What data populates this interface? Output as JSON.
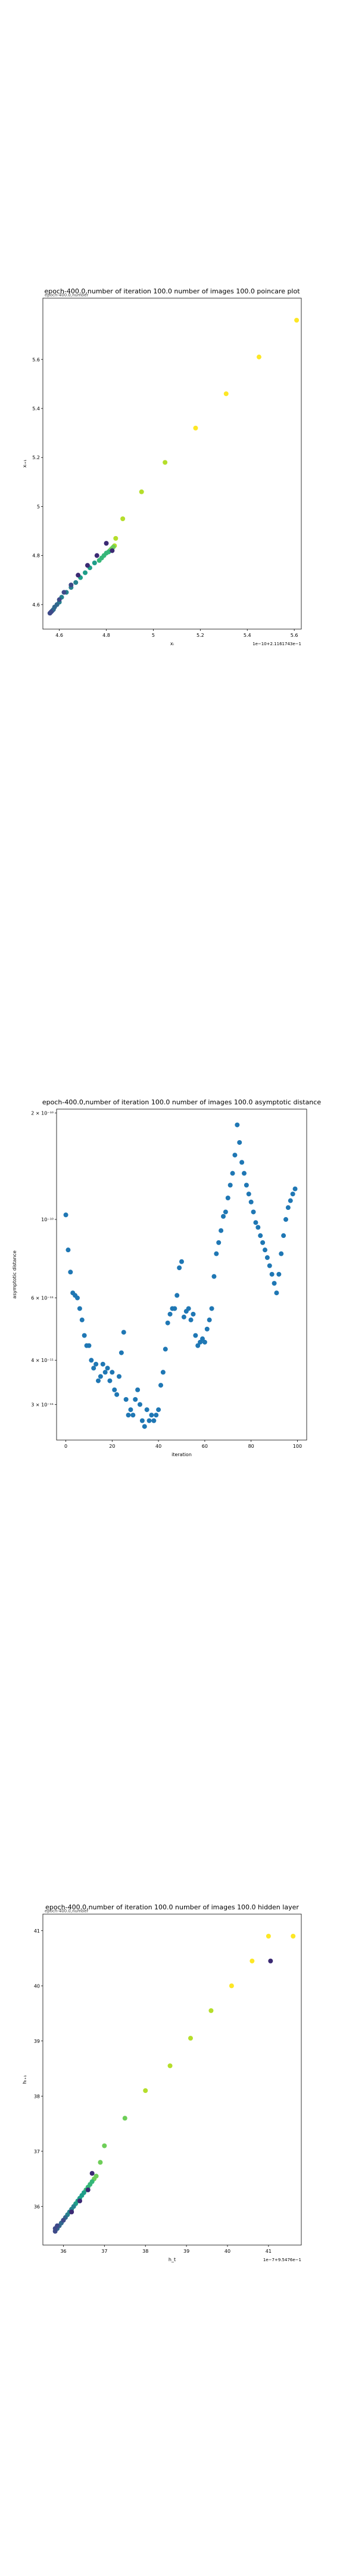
{
  "charts": [
    {
      "type": "scatter",
      "title": "epoch-400.0,number of iteration 100.0  number of images 100.0 poincare plot",
      "overlay_text": "epoch-400.0,number",
      "xlabel": "xᵢ",
      "ylabel": "xᵢ₊₁",
      "offset_text": "1e−10+2.1161743e−1",
      "xlim": [
        4.53,
        5.63
      ],
      "ylim": [
        4.5,
        5.85
      ],
      "xticks": [
        4.6,
        4.8,
        5.0,
        5.2,
        5.4,
        5.6
      ],
      "yticks": [
        4.6,
        4.8,
        5.0,
        5.2,
        5.4,
        5.6
      ],
      "colors": [
        "#3b2a73",
        "#3e4a89",
        "#31688e",
        "#26828e",
        "#1f9e89",
        "#35b779",
        "#6ece58",
        "#b5de2b",
        "#fde725"
      ],
      "x": [
        5.61,
        5.45,
        5.31,
        5.18,
        5.05,
        4.95,
        4.87,
        4.84,
        4.835,
        4.83,
        4.825,
        4.82,
        4.815,
        4.81,
        4.8,
        4.79,
        4.78,
        4.77,
        4.75,
        4.73,
        4.71,
        4.69,
        4.67,
        4.65,
        4.63,
        4.61,
        4.6,
        4.59,
        4.58,
        4.575,
        4.57,
        4.565,
        4.56,
        4.6,
        4.62,
        4.65,
        4.68,
        4.72,
        4.76,
        4.8,
        4.825
      ],
      "y": [
        5.76,
        5.61,
        5.46,
        5.32,
        5.18,
        5.06,
        4.95,
        4.87,
        4.84,
        4.835,
        4.83,
        4.825,
        4.82,
        4.815,
        4.81,
        4.8,
        4.79,
        4.78,
        4.77,
        4.75,
        4.73,
        4.71,
        4.69,
        4.67,
        4.65,
        4.63,
        4.61,
        4.6,
        4.59,
        4.58,
        4.575,
        4.57,
        4.565,
        4.62,
        4.65,
        4.68,
        4.72,
        4.76,
        4.8,
        4.85,
        4.82
      ]
    },
    {
      "type": "scatter",
      "title": "epoch-400.0,number of iteration 100.0  number of images 100.0 asymptotic distance",
      "xlabel": "iteration",
      "ylabel": "asymptotic distance",
      "yscale": "log",
      "xlim": [
        -4,
        104
      ],
      "ylim": [
        2.38e-11,
        2.05e-10
      ],
      "xticks": [
        0,
        20,
        40,
        60,
        80,
        100
      ],
      "ytick_values": [
        2e-10,
        1e-10,
        6e-11,
        4e-11,
        3e-11
      ],
      "yticks": [
        "2 × 10⁻¹⁰",
        "10⁻¹⁰",
        "6 × 10⁻¹¹",
        "4 × 10⁻¹¹",
        "3 × 10⁻¹¹"
      ],
      "colors": [
        "#1f77b4"
      ],
      "x": [
        0,
        1,
        2,
        3,
        4,
        5,
        6,
        7,
        8,
        9,
        10,
        11,
        12,
        13,
        14,
        15,
        16,
        17,
        18,
        19,
        20,
        21,
        22,
        23,
        24,
        25,
        26,
        27,
        28,
        29,
        30,
        31,
        32,
        33,
        34,
        35,
        36,
        37,
        38,
        39,
        40,
        41,
        42,
        43,
        44,
        45,
        46,
        47,
        48,
        49,
        50,
        51,
        52,
        53,
        54,
        55,
        56,
        57,
        58,
        59,
        60,
        61,
        62,
        63,
        64,
        65,
        66,
        67,
        68,
        69,
        70,
        71,
        72,
        73,
        74,
        75,
        76,
        77,
        78,
        79,
        80,
        81,
        82,
        83,
        84,
        85,
        86,
        87,
        88,
        89,
        90,
        91,
        92,
        93,
        94,
        95,
        96,
        97,
        98,
        99
      ],
      "y": [
        1.03e-10,
        8.2e-11,
        7.1e-11,
        6.2e-11,
        6.1e-11,
        6e-11,
        5.6e-11,
        5.2e-11,
        4.7e-11,
        4.4e-11,
        4.4e-11,
        4e-11,
        3.8e-11,
        3.9e-11,
        3.5e-11,
        3.6e-11,
        3.9e-11,
        3.7e-11,
        3.8e-11,
        3.5e-11,
        3.7e-11,
        3.3e-11,
        3.2e-11,
        3.6e-11,
        4.2e-11,
        4.8e-11,
        3.1e-11,
        2.8e-11,
        2.9e-11,
        2.8e-11,
        3.1e-11,
        3.3e-11,
        3e-11,
        2.7e-11,
        2.6e-11,
        2.9e-11,
        2.7e-11,
        2.8e-11,
        2.7e-11,
        2.8e-11,
        2.9e-11,
        3.4e-11,
        3.7e-11,
        4.3e-11,
        5.1e-11,
        5.4e-11,
        5.6e-11,
        5.6e-11,
        6.1e-11,
        7.3e-11,
        7.6e-11,
        5.3e-11,
        5.5e-11,
        5.6e-11,
        5.2e-11,
        5.4e-11,
        4.7e-11,
        4.4e-11,
        4.5e-11,
        4.6e-11,
        4.5e-11,
        4.9e-11,
        5.2e-11,
        5.6e-11,
        6.9e-11,
        8e-11,
        8.6e-11,
        9.3e-11,
        1.02e-10,
        1.05e-10,
        1.15e-10,
        1.25e-10,
        1.35e-10,
        1.52e-10,
        1.85e-10,
        1.65e-10,
        1.45e-10,
        1.35e-10,
        1.25e-10,
        1.18e-10,
        1.12e-10,
        1.05e-10,
        9.8e-11,
        9.5e-11,
        9e-11,
        8.6e-11,
        8.2e-11,
        7.8e-11,
        7.4e-11,
        7e-11,
        6.6e-11,
        6.2e-11,
        7e-11,
        8e-11,
        9e-11,
        1e-10,
        1.08e-10,
        1.13e-10,
        1.18e-10,
        1.22e-10
      ]
    },
    {
      "type": "scatter",
      "title": "epoch-400.0,number of iteration 100.0  number of images 100.0 hidden layer",
      "overlay_text": "epoch-400.0,number",
      "xlabel": "h_t",
      "ylabel": "hₜ₊₁",
      "offset_text": "1e−7+9.5476e−1",
      "xlim": [
        35.5,
        41.8
      ],
      "ylim": [
        35.3,
        41.3
      ],
      "xticks": [
        36,
        37,
        38,
        39,
        40,
        41
      ],
      "yticks": [
        36,
        37,
        38,
        39,
        40,
        41
      ],
      "colors": [
        "#3b2a73",
        "#3e4a89",
        "#31688e",
        "#26828e",
        "#1f9e89",
        "#35b779",
        "#6ece58",
        "#b5de2b",
        "#fde725"
      ],
      "x": [
        41.6,
        41.0,
        40.6,
        40.1,
        39.6,
        39.1,
        38.6,
        38.0,
        37.5,
        37.0,
        36.9,
        36.8,
        36.75,
        36.7,
        36.65,
        36.6,
        36.55,
        36.5,
        36.45,
        36.4,
        36.35,
        36.3,
        36.25,
        36.2,
        36.15,
        36.1,
        36.05,
        36.0,
        35.95,
        35.9,
        35.85,
        35.8,
        35.8,
        35.85,
        36.0,
        36.2,
        36.4,
        36.6,
        41.05,
        36.7
      ],
      "y": [
        40.9,
        40.9,
        40.45,
        40.0,
        39.55,
        39.05,
        38.55,
        38.1,
        37.6,
        37.1,
        36.8,
        36.55,
        36.5,
        36.45,
        36.4,
        36.35,
        36.3,
        36.25,
        36.2,
        36.15,
        36.1,
        36.05,
        36.0,
        35.95,
        35.9,
        35.85,
        35.8,
        35.75,
        35.7,
        35.65,
        35.6,
        35.55,
        35.6,
        35.65,
        35.75,
        35.9,
        36.1,
        36.3,
        40.45,
        36.6
      ]
    }
  ]
}
